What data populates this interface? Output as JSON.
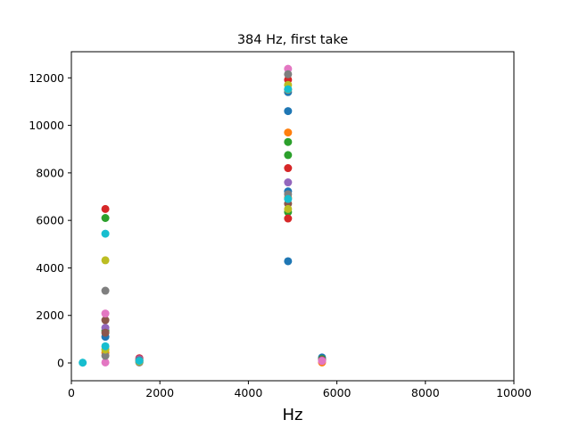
{
  "chart_data": {
    "type": "scatter",
    "title": "384 Hz, first take",
    "xlabel": "Hz",
    "ylabel": "",
    "xlim": [
      0,
      10000
    ],
    "ylim": [
      -750,
      13100
    ],
    "x_ticks": [
      0,
      2000,
      4000,
      6000,
      8000,
      10000
    ],
    "y_ticks": [
      0,
      2000,
      4000,
      6000,
      8000,
      10000,
      12000
    ],
    "x_tick_labels": [
      "0",
      "2000",
      "4000",
      "6000",
      "8000",
      "10000"
    ],
    "y_tick_labels": [
      "0",
      "2000",
      "4000",
      "6000",
      "8000",
      "10000",
      "12000"
    ],
    "grid": false,
    "legend": "none",
    "series": [
      {
        "color": "#1f77b4",
        "points": [
          [
            768,
            1100
          ],
          [
            1536,
            30
          ],
          [
            4896,
            4280
          ],
          [
            4896,
            7220
          ],
          [
            4896,
            10600
          ],
          [
            4896,
            11400
          ],
          [
            5664,
            230
          ]
        ]
      },
      {
        "color": "#ff7f0e",
        "points": [
          [
            768,
            430
          ],
          [
            1536,
            120
          ],
          [
            4896,
            6950
          ],
          [
            4896,
            9700
          ],
          [
            4896,
            11500
          ],
          [
            5664,
            20
          ]
        ]
      },
      {
        "color": "#2ca02c",
        "points": [
          [
            768,
            1350
          ],
          [
            768,
            6100
          ],
          [
            1536,
            80
          ],
          [
            4896,
            6350
          ],
          [
            4896,
            8750
          ],
          [
            4896,
            9300
          ],
          [
            5664,
            160
          ]
        ]
      },
      {
        "color": "#d62728",
        "points": [
          [
            768,
            6480
          ],
          [
            1536,
            200
          ],
          [
            4896,
            6080
          ],
          [
            4896,
            8200
          ],
          [
            4896,
            11920
          ],
          [
            5664,
            120
          ]
        ]
      },
      {
        "color": "#9467bd",
        "points": [
          [
            768,
            1480
          ],
          [
            1536,
            160
          ],
          [
            4896,
            7600
          ],
          [
            5664,
            100
          ]
        ]
      },
      {
        "color": "#8c564b",
        "points": [
          [
            768,
            1800
          ],
          [
            768,
            1270
          ],
          [
            1536,
            110
          ],
          [
            4896,
            6700
          ]
        ]
      },
      {
        "color": "#e377c2",
        "points": [
          [
            768,
            2080
          ],
          [
            768,
            20
          ],
          [
            1536,
            40
          ],
          [
            4896,
            12380
          ],
          [
            5664,
            80
          ]
        ]
      },
      {
        "color": "#7f7f7f",
        "points": [
          [
            768,
            3040
          ],
          [
            768,
            300
          ],
          [
            1536,
            20
          ],
          [
            4896,
            7100
          ],
          [
            4896,
            12150
          ]
        ]
      },
      {
        "color": "#bcbd22",
        "points": [
          [
            768,
            4320
          ],
          [
            768,
            560
          ],
          [
            1536,
            60
          ],
          [
            4896,
            6480
          ],
          [
            4896,
            11700
          ]
        ]
      },
      {
        "color": "#17becf",
        "points": [
          [
            256,
            10
          ],
          [
            768,
            5440
          ],
          [
            768,
            700
          ],
          [
            1536,
            90
          ],
          [
            4896,
            6900
          ],
          [
            4896,
            11520
          ]
        ]
      }
    ]
  }
}
